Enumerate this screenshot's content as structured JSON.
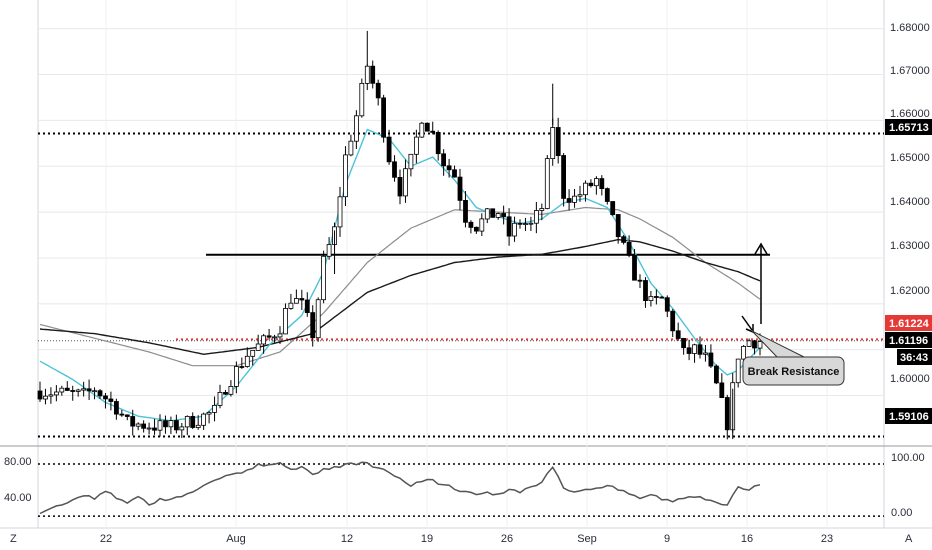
{
  "chart_data": [
    {
      "type": "candlestick",
      "panel": "price",
      "ylim": [
        1.589,
        1.6845
      ],
      "y_ticks": [
        "1.68000",
        "1.67000",
        "1.66000",
        "1.65000",
        "1.64000",
        "1.63000",
        "1.62000",
        "1.60000"
      ],
      "x_ticks": [
        "22",
        "Aug",
        "12",
        "19",
        "26",
        "Sep",
        "9",
        "16",
        "23"
      ],
      "price_tags": [
        {
          "label": "1.65713",
          "value": 1.65713,
          "color": "#000000"
        },
        {
          "label": "1.61224",
          "value": 1.61224,
          "color": "#e53935"
        },
        {
          "label": "1.61196",
          "value": 1.61196,
          "color": "#000000"
        },
        {
          "label": "36:43",
          "color": "#000000"
        },
        {
          "label": "1.59106",
          "value": 1.59106,
          "color": "#000000"
        }
      ],
      "levels": [
        {
          "value": 1.65713,
          "style": "dotted",
          "color": "#000000"
        },
        {
          "value": 1.61224,
          "style": "dotted",
          "color": "#e53935"
        },
        {
          "value": 1.59106,
          "style": "dotted",
          "color": "#000000"
        },
        {
          "value": 1.6307,
          "style": "solid",
          "color": "#000000"
        }
      ],
      "annotation": {
        "text": "Break Resistance"
      },
      "x_range_days": [
        0,
        70
      ],
      "anchors": [
        [
          0,
          1.601
        ],
        [
          2,
          1.6005
        ],
        [
          4,
          1.6
        ],
        [
          5,
          1.6015
        ],
        [
          7,
          1.5975
        ],
        [
          8,
          1.594
        ],
        [
          10,
          1.5935
        ],
        [
          12,
          1.593
        ],
        [
          14,
          1.5945
        ],
        [
          16,
          1.5965
        ],
        [
          17,
          1.602
        ],
        [
          19,
          1.609
        ],
        [
          21,
          1.6125
        ],
        [
          22,
          1.615
        ],
        [
          23,
          1.6215
        ],
        [
          24,
          1.6195
        ],
        [
          25,
          1.6135
        ],
        [
          26,
          1.629
        ],
        [
          27,
          1.636
        ],
        [
          28,
          1.652
        ],
        [
          29,
          1.661
        ],
        [
          30,
          1.672
        ],
        [
          31,
          1.664
        ],
        [
          32,
          1.652
        ],
        [
          33,
          1.645
        ],
        [
          34,
          1.651
        ],
        [
          35,
          1.661
        ],
        [
          36,
          1.657
        ],
        [
          37,
          1.651
        ],
        [
          38,
          1.648
        ],
        [
          39,
          1.639
        ],
        [
          40,
          1.637
        ],
        [
          41,
          1.639
        ],
        [
          42,
          1.64
        ],
        [
          43,
          1.635
        ],
        [
          44,
          1.638
        ],
        [
          45,
          1.637
        ],
        [
          46,
          1.641
        ],
        [
          47,
          1.659
        ],
        [
          48,
          1.644
        ],
        [
          49,
          1.643
        ],
        [
          50,
          1.645
        ],
        [
          51,
          1.647
        ],
        [
          52,
          1.641
        ],
        [
          53,
          1.635
        ],
        [
          54,
          1.629
        ],
        [
          55,
          1.624
        ],
        [
          56,
          1.62
        ],
        [
          57,
          1.621
        ],
        [
          58,
          1.615
        ],
        [
          59,
          1.609
        ],
        [
          60,
          1.61
        ],
        [
          61,
          1.608
        ],
        [
          62,
          1.602
        ],
        [
          63,
          1.594
        ],
        [
          64,
          1.609
        ],
        [
          65,
          1.612
        ],
        [
          66,
          1.6119
        ]
      ],
      "ema_fast": [
        [
          0,
          1.6075
        ],
        [
          3,
          1.6035
        ],
        [
          6,
          1.5985
        ],
        [
          9,
          1.5955
        ],
        [
          12,
          1.5945
        ],
        [
          15,
          1.5955
        ],
        [
          18,
          1.602
        ],
        [
          21,
          1.611
        ],
        [
          24,
          1.6175
        ],
        [
          26,
          1.627
        ],
        [
          28,
          1.646
        ],
        [
          30,
          1.658
        ],
        [
          32,
          1.656
        ],
        [
          34,
          1.65
        ],
        [
          36,
          1.652
        ],
        [
          38,
          1.647
        ],
        [
          40,
          1.641
        ],
        [
          42,
          1.639
        ],
        [
          44,
          1.6375
        ],
        [
          46,
          1.6385
        ],
        [
          48,
          1.642
        ],
        [
          50,
          1.643
        ],
        [
          52,
          1.641
        ],
        [
          54,
          1.6335
        ],
        [
          56,
          1.6245
        ],
        [
          58,
          1.619
        ],
        [
          60,
          1.6125
        ],
        [
          62,
          1.6065
        ],
        [
          63,
          1.6045
        ],
        [
          64,
          1.6055
        ],
        [
          65,
          1.608
        ],
        [
          66,
          1.6105
        ]
      ],
      "sma_mid": [
        [
          0,
          1.6155
        ],
        [
          5,
          1.6125
        ],
        [
          10,
          1.6095
        ],
        [
          14,
          1.6065
        ],
        [
          18,
          1.6065
        ],
        [
          22,
          1.6095
        ],
        [
          26,
          1.618
        ],
        [
          30,
          1.629
        ],
        [
          34,
          1.6365
        ],
        [
          38,
          1.6405
        ],
        [
          42,
          1.64
        ],
        [
          46,
          1.6395
        ],
        [
          50,
          1.641
        ],
        [
          53,
          1.6405
        ],
        [
          55,
          1.6385
        ],
        [
          58,
          1.6345
        ],
        [
          61,
          1.629
        ],
        [
          64,
          1.6245
        ],
        [
          66,
          1.621
        ]
      ],
      "sma_slow": [
        [
          0,
          1.6145
        ],
        [
          5,
          1.6135
        ],
        [
          10,
          1.6115
        ],
        [
          15,
          1.609
        ],
        [
          20,
          1.6105
        ],
        [
          25,
          1.6135
        ],
        [
          30,
          1.6225
        ],
        [
          34,
          1.6262
        ],
        [
          38,
          1.629
        ],
        [
          42,
          1.6302
        ],
        [
          46,
          1.6308
        ],
        [
          50,
          1.6325
        ],
        [
          53,
          1.634
        ],
        [
          55,
          1.6335
        ],
        [
          58,
          1.6315
        ],
        [
          61,
          1.629
        ],
        [
          64,
          1.627
        ],
        [
          66,
          1.625
        ]
      ]
    },
    {
      "type": "line",
      "panel": "oscillator",
      "ylim": [
        -6,
        100
      ],
      "y_ticks_left": [
        "80.00",
        "40.00"
      ],
      "y_ticks_right": [
        "100.00",
        "0.00"
      ],
      "levels": [
        80,
        0
      ],
      "series": [
        {
          "values": [
            [
              0,
              4
            ],
            [
              1,
              12
            ],
            [
              2,
              17
            ],
            [
              3,
              25
            ],
            [
              4,
              31
            ],
            [
              5,
              26
            ],
            [
              6,
              38
            ],
            [
              7,
              27
            ],
            [
              8,
              20
            ],
            [
              9,
              30
            ],
            [
              10,
              17
            ],
            [
              11,
              27
            ],
            [
              12,
              26
            ],
            [
              13,
              30
            ],
            [
              14,
              37
            ],
            [
              15,
              47
            ],
            [
              16,
              55
            ],
            [
              17,
              62
            ],
            [
              18,
              66
            ],
            [
              19,
              71
            ],
            [
              20,
              80
            ],
            [
              21,
              79
            ],
            [
              22,
              82
            ],
            [
              23,
              72
            ],
            [
              24,
              76
            ],
            [
              25,
              64
            ],
            [
              26,
              73
            ],
            [
              27,
              76
            ],
            [
              28,
              80
            ],
            [
              29,
              79
            ],
            [
              30,
              82
            ],
            [
              31,
              74
            ],
            [
              32,
              67
            ],
            [
              33,
              58
            ],
            [
              34,
              46
            ],
            [
              35,
              53
            ],
            [
              36,
              56
            ],
            [
              37,
              48
            ],
            [
              38,
              41
            ],
            [
              39,
              38
            ],
            [
              40,
              33
            ],
            [
              41,
              37
            ],
            [
              42,
              34
            ],
            [
              43,
              41
            ],
            [
              44,
              36
            ],
            [
              45,
              45
            ],
            [
              46,
              52
            ],
            [
              47,
              75
            ],
            [
              48,
              43
            ],
            [
              49,
              37
            ],
            [
              50,
              41
            ],
            [
              51,
              43
            ],
            [
              52,
              47
            ],
            [
              53,
              40
            ],
            [
              54,
              34
            ],
            [
              55,
              27
            ],
            [
              56,
              33
            ],
            [
              57,
              25
            ],
            [
              58,
              22
            ],
            [
              59,
              27
            ],
            [
              60,
              29
            ],
            [
              61,
              25
            ],
            [
              62,
              21
            ],
            [
              63,
              17
            ],
            [
              64,
              45
            ],
            [
              65,
              40
            ],
            [
              66,
              48
            ]
          ]
        }
      ]
    }
  ]
}
